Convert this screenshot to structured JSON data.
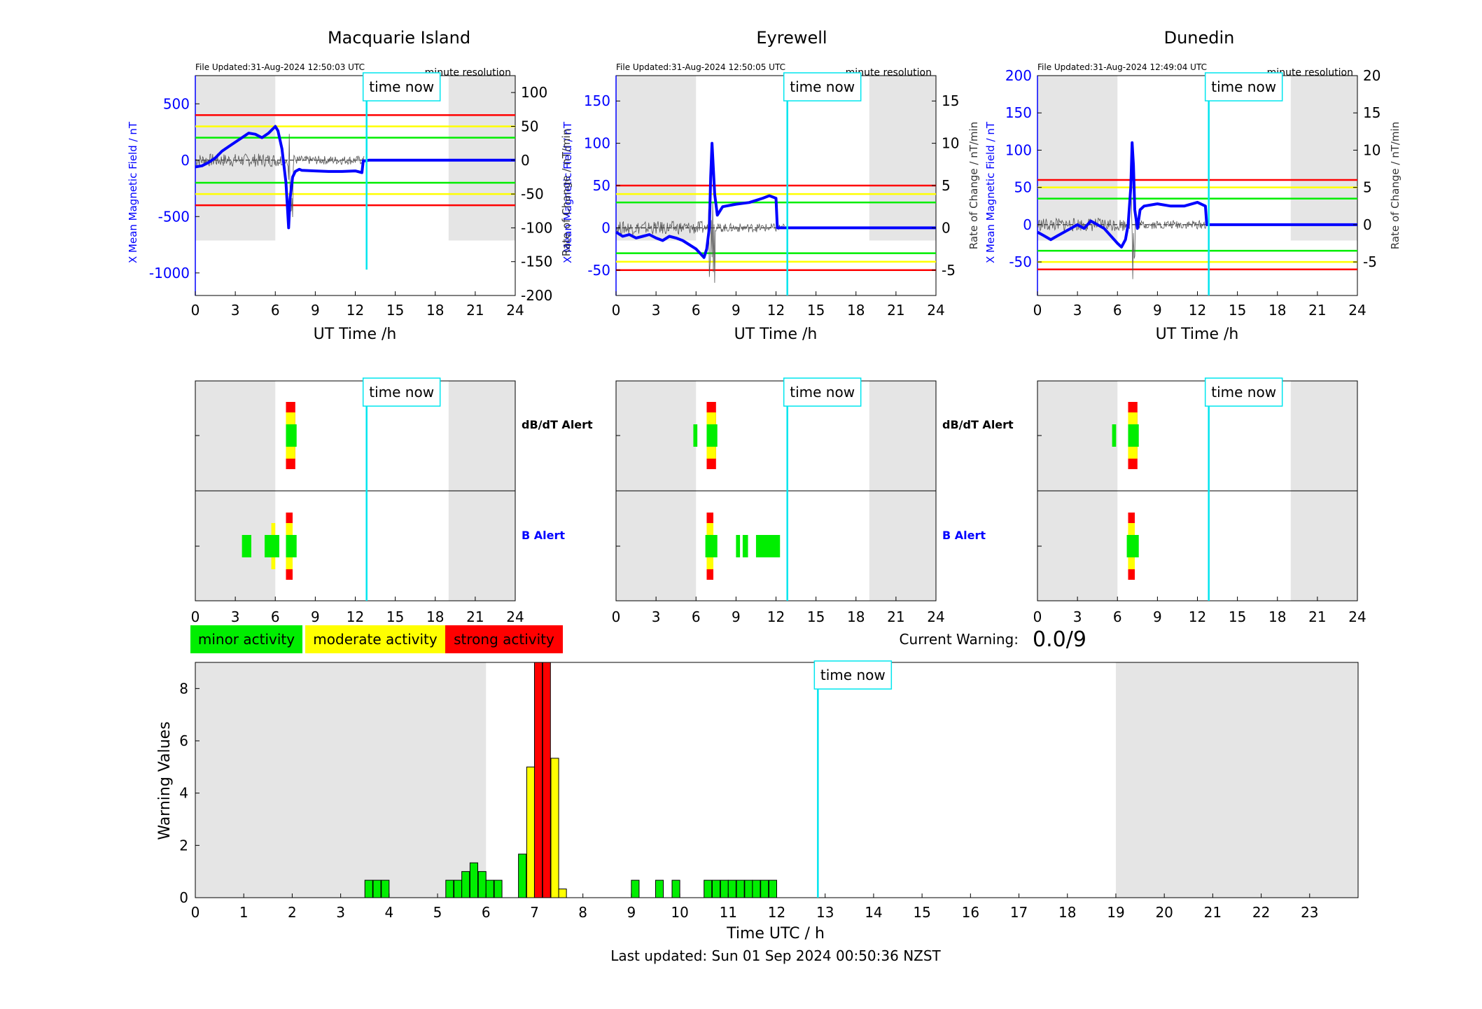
{
  "colors": {
    "shade": "#e5e5e5",
    "blue": "#0000ff",
    "trace": "#0000dd",
    "rate": "#555555",
    "red": "#ff0000",
    "yellow": "#ffff00",
    "green": "#00ee00",
    "cyan": "#00e5ee",
    "black": "#000000"
  },
  "top_panels": [
    {
      "station": "Macquarie Island",
      "file_updated": "File Updated:31-Aug-2024 12:50:03 UTC",
      "resolution": "minute resolution",
      "time_now_label": "time now",
      "xlabel": "UT Time /h",
      "ylabel_left": "X Mean Magnetic Field / nT",
      "ylabel_right": "Rate of Change / nT/min",
      "left_ticks": [
        "500",
        "0",
        "-500",
        "-1000"
      ],
      "right_ticks": [
        "100",
        "50",
        "0",
        "-50",
        "-100",
        "-150",
        "-200"
      ]
    },
    {
      "station": "Eyrewell",
      "file_updated": "File Updated:31-Aug-2024 12:50:05 UTC",
      "resolution": "minute resolution",
      "time_now_label": "time now",
      "xlabel": "UT Time /h",
      "ylabel_left": "X Mean Magnetic Field / nT",
      "ylabel_right": "Rate of Change / nT/min",
      "left_ticks": [
        "150",
        "100",
        "50",
        "0",
        "-50"
      ],
      "right_ticks": [
        "15",
        "10",
        "5",
        "0",
        "-5"
      ]
    },
    {
      "station": "Dunedin",
      "file_updated": "File Updated:31-Aug-2024 12:49:04 UTC",
      "resolution": "minute resolution",
      "time_now_label": "time now",
      "xlabel": "UT Time /h",
      "ylabel_left": "X Mean Magnetic Field / nT",
      "ylabel_right": "Rate of Change / nT/min",
      "left_ticks": [
        "200",
        "150",
        "100",
        "50",
        "0",
        "-50"
      ],
      "right_ticks": [
        "20",
        "15",
        "10",
        "5",
        "0",
        "-5"
      ]
    }
  ],
  "x_ticks_24": [
    "0",
    "3",
    "6",
    "9",
    "12",
    "15",
    "18",
    "21",
    "24"
  ],
  "alert_labels": {
    "dbdt": "dB/dT Alert",
    "b": "B Alert"
  },
  "legend": {
    "minor": "minor activity",
    "moderate": "moderate activity",
    "strong": "strong activity"
  },
  "current_warning": {
    "label": "Current Warning:",
    "value": "0.0/9"
  },
  "bottom": {
    "time_now_label": "time now",
    "ylabel": "Warning Values",
    "xlabel": "Time UTC / h",
    "y_ticks": [
      "0",
      "2",
      "4",
      "6",
      "8"
    ],
    "x_ticks": [
      "0",
      "1",
      "2",
      "3",
      "4",
      "5",
      "6",
      "7",
      "8",
      "9",
      "10",
      "11",
      "12",
      "13",
      "14",
      "15",
      "16",
      "17",
      "18",
      "19",
      "20",
      "21",
      "22",
      "23"
    ],
    "last_updated": "Last updated: Sun 01 Sep 2024 00:50:36 NZST"
  },
  "chart_data": [
    {
      "type": "line",
      "title": "Macquarie Island",
      "xlabel": "UT Time /h",
      "ylabel": "X Mean Magnetic Field / nT",
      "ylabel_right": "Rate of Change / nT/min",
      "xlim": [
        0,
        24
      ],
      "ylim": [
        -1200,
        750
      ],
      "ylim_right": [
        -200,
        125
      ],
      "shaded_hours": [
        [
          0,
          6
        ],
        [
          19,
          24
        ]
      ],
      "time_now": 12.85,
      "thresholds_nT": {
        "strong": 400,
        "moderate": 300,
        "minor": 200
      },
      "series": [
        {
          "name": "X Mean Magnetic Field",
          "x": [
            0,
            0.5,
            1,
            1.5,
            2,
            2.5,
            3,
            3.5,
            4,
            4.5,
            5,
            5.5,
            6,
            6.2,
            6.5,
            6.8,
            7,
            7.1,
            7.3,
            7.5,
            7.8,
            8,
            9,
            10,
            11,
            12,
            12.5,
            12.6,
            12.8,
            13,
            18,
            24
          ],
          "values": [
            -60,
            -50,
            -20,
            20,
            80,
            120,
            160,
            200,
            240,
            230,
            200,
            240,
            300,
            260,
            100,
            -200,
            -600,
            -350,
            -150,
            -100,
            -80,
            -90,
            -95,
            -100,
            -100,
            -95,
            -110,
            -5,
            -5,
            0,
            0,
            0
          ]
        }
      ]
    },
    {
      "type": "line",
      "title": "Eyrewell",
      "xlabel": "UT Time /h",
      "ylabel": "X Mean Magnetic Field / nT",
      "ylabel_right": "Rate of Change / nT/min",
      "xlim": [
        0,
        24
      ],
      "ylim": [
        -80,
        180
      ],
      "ylim_right": [
        -8,
        18
      ],
      "shaded_hours": [
        [
          0,
          6
        ],
        [
          19,
          24
        ]
      ],
      "time_now": 12.85,
      "thresholds_nT": {
        "strong": 50,
        "moderate": 40,
        "minor": 30
      },
      "series": [
        {
          "name": "X Mean Magnetic Field",
          "x": [
            0,
            0.5,
            1,
            1.5,
            2,
            2.5,
            3,
            3.5,
            4,
            4.5,
            5,
            5.5,
            6,
            6.3,
            6.6,
            6.8,
            7,
            7.1,
            7.2,
            7.4,
            7.6,
            7.8,
            8,
            9,
            10,
            11,
            11.5,
            12,
            12.1,
            12.3,
            18,
            24
          ],
          "values": [
            -5,
            -10,
            -8,
            -12,
            -10,
            -8,
            -12,
            -15,
            -10,
            -12,
            -15,
            -20,
            -25,
            -30,
            -35,
            -25,
            0,
            60,
            100,
            40,
            15,
            20,
            25,
            28,
            30,
            35,
            38,
            35,
            0,
            0,
            0,
            0
          ]
        }
      ]
    },
    {
      "type": "line",
      "title": "Dunedin",
      "xlabel": "UT Time /h",
      "ylabel": "X Mean Magnetic Field / nT",
      "ylabel_right": "Rate of Change / nT/min",
      "xlim": [
        0,
        24
      ],
      "ylim": [
        -95,
        200
      ],
      "ylim_right": [
        -9.5,
        20
      ],
      "shaded_hours": [
        [
          0,
          6
        ],
        [
          19,
          24
        ]
      ],
      "time_now": 12.85,
      "thresholds_nT": {
        "strong": 60,
        "moderate": 50,
        "minor": 35
      },
      "series": [
        {
          "name": "X Mean Magnetic Field",
          "x": [
            0,
            0.5,
            1,
            1.5,
            2,
            2.5,
            3,
            3.5,
            4,
            4.5,
            5,
            5.5,
            6,
            6.3,
            6.6,
            6.8,
            7,
            7.1,
            7.2,
            7.3,
            7.5,
            7.7,
            8,
            9,
            10,
            11,
            12,
            12.6,
            12.7,
            13,
            18,
            24
          ],
          "values": [
            -10,
            -15,
            -20,
            -15,
            -10,
            -5,
            0,
            -5,
            5,
            0,
            -5,
            -15,
            -25,
            -30,
            -20,
            0,
            50,
            110,
            80,
            20,
            -5,
            20,
            25,
            28,
            25,
            25,
            30,
            25,
            0,
            0,
            0,
            0
          ]
        }
      ]
    },
    {
      "type": "bar",
      "title": "Warning Values",
      "xlabel": "Time UTC / h",
      "ylabel": "Warning Values",
      "xlim": [
        0,
        24
      ],
      "ylim": [
        0,
        9
      ],
      "shaded_hours": [
        [
          0,
          6
        ],
        [
          19,
          24
        ]
      ],
      "time_now": 12.85,
      "bars": [
        {
          "x": 3.58,
          "value": 0.667,
          "level": "minor"
        },
        {
          "x": 3.75,
          "value": 0.667,
          "level": "minor"
        },
        {
          "x": 3.92,
          "value": 0.667,
          "level": "minor"
        },
        {
          "x": 5.25,
          "value": 0.667,
          "level": "minor"
        },
        {
          "x": 5.42,
          "value": 0.667,
          "level": "minor"
        },
        {
          "x": 5.58,
          "value": 1.0,
          "level": "minor"
        },
        {
          "x": 5.75,
          "value": 1.333,
          "level": "minor"
        },
        {
          "x": 5.92,
          "value": 1.0,
          "level": "minor"
        },
        {
          "x": 6.08,
          "value": 0.667,
          "level": "minor"
        },
        {
          "x": 6.25,
          "value": 0.667,
          "level": "minor"
        },
        {
          "x": 6.75,
          "value": 1.667,
          "level": "minor"
        },
        {
          "x": 6.92,
          "value": 5.0,
          "level": "moderate"
        },
        {
          "x": 7.08,
          "value": 9.0,
          "level": "strong"
        },
        {
          "x": 7.25,
          "value": 9.0,
          "level": "strong"
        },
        {
          "x": 7.42,
          "value": 5.333,
          "level": "moderate"
        },
        {
          "x": 7.58,
          "value": 0.333,
          "level": "moderate"
        },
        {
          "x": 9.08,
          "value": 0.667,
          "level": "minor"
        },
        {
          "x": 9.58,
          "value": 0.667,
          "level": "minor"
        },
        {
          "x": 9.92,
          "value": 0.667,
          "level": "minor"
        },
        {
          "x": 10.58,
          "value": 0.667,
          "level": "minor"
        },
        {
          "x": 10.75,
          "value": 0.667,
          "level": "minor"
        },
        {
          "x": 10.92,
          "value": 0.667,
          "level": "minor"
        },
        {
          "x": 11.08,
          "value": 0.667,
          "level": "minor"
        },
        {
          "x": 11.25,
          "value": 0.667,
          "level": "minor"
        },
        {
          "x": 11.42,
          "value": 0.667,
          "level": "minor"
        },
        {
          "x": 11.58,
          "value": 0.667,
          "level": "minor"
        },
        {
          "x": 11.75,
          "value": 0.667,
          "level": "minor"
        },
        {
          "x": 11.92,
          "value": 0.667,
          "level": "minor"
        }
      ]
    }
  ]
}
